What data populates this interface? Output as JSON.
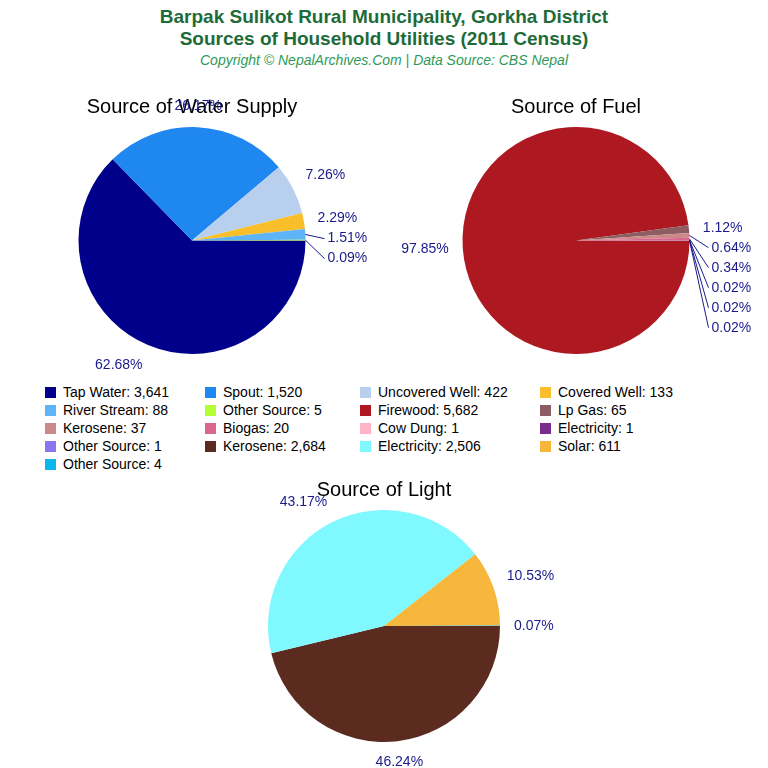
{
  "title": [
    "Barpak Sulikot Rural Municipality, Gorkha District",
    "Sources of Household Utilities (2011 Census)"
  ],
  "subtitle": "Copyright © NepalArchives.Com | Data Source: CBS Nepal",
  "chart_data": [
    {
      "type": "pie",
      "title": "Source of Water Supply",
      "categories": [
        "Tap Water: 3,641",
        "Spout: 1,520",
        "Uncovered Well: 422",
        "Covered Well: 133",
        "River Stream: 88",
        "Other Source: 5"
      ],
      "values": [
        62.68,
        26.17,
        7.26,
        2.29,
        1.51,
        0.09
      ],
      "value_labels": [
        "62.68%",
        "26.17%",
        "7.26%",
        "2.29%",
        "1.51%",
        "0.09%"
      ],
      "colors": [
        "#00008b",
        "#1f87f0",
        "#b8cfee",
        "#f8bf2a",
        "#5fb4f7",
        "#b3ff33"
      ],
      "data_labels": true
    },
    {
      "type": "pie",
      "title": "Source of Fuel",
      "categories": [
        "Firewood: 5,682",
        "Lp Gas: 65",
        "Kerosene: 37",
        "Biogas: 20",
        "Cow Dung: 1",
        "Electricity: 1",
        "Other Source: 1"
      ],
      "values": [
        97.85,
        1.12,
        0.64,
        0.34,
        0.02,
        0.02,
        0.02
      ],
      "value_labels": [
        "97.85%",
        "1.12%",
        "0.64%",
        "0.34%",
        "0.02%",
        "0.02%",
        "0.02%"
      ],
      "colors": [
        "#ae1820",
        "#8c5e64",
        "#cc8888",
        "#d9668f",
        "#ffb3c6",
        "#7b2d8e",
        "#8877ee"
      ],
      "data_labels": true
    },
    {
      "type": "pie",
      "title": "Source of Light",
      "categories": [
        "Kerosene: 2,684",
        "Electricity: 2,506",
        "Solar: 611",
        "Other Source: 4"
      ],
      "values": [
        46.24,
        43.17,
        10.53,
        0.07
      ],
      "value_labels": [
        "46.24%",
        "43.17%",
        "10.53%",
        "0.07%"
      ],
      "colors": [
        "#5c2b20",
        "#7ff9ff",
        "#f6b73c",
        "#0bb5ee"
      ],
      "data_labels": true
    }
  ]
}
